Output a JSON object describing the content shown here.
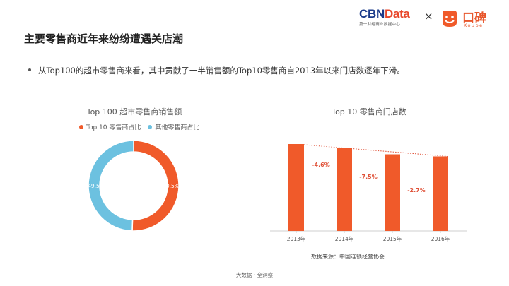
{
  "header": {
    "title": "主要零售商近年来纷纷遭遇关店潮",
    "cbn_logo": {
      "part1": "CBN",
      "part2": "Data",
      "tagline": "第一财经商业数据中心"
    },
    "times_symbol": "×",
    "koubei_logo": {
      "text": "口碑",
      "sub": "Koubei"
    }
  },
  "bullet": "从Top100的超市零售商来看，其中贡献了一半销售额的Top10零售商自2013年以来门店数逐年下滑。",
  "colors": {
    "orange": "#f05a2a",
    "blue": "#6cc1e0",
    "trend_line": "#e0533a"
  },
  "chart_data": [
    {
      "type": "pie",
      "title": "Top 100 超市零售商销售额",
      "legend": [
        "Top 10 零售商占比",
        "其他零售商占比"
      ],
      "labels": [
        "Top 10 零售商占比",
        "其他零售商占比"
      ],
      "values": [
        50.5,
        49.5
      ],
      "value_labels": [
        "50.5%",
        "49.5%"
      ],
      "style": "donut"
    },
    {
      "type": "bar",
      "title": "Top 10 零售商门店数",
      "categories": [
        "2013年",
        "2014年",
        "2015年",
        "2016年"
      ],
      "values": [
        100,
        95.4,
        88.2,
        85.8
      ],
      "yaxis_shown": false,
      "annotations": [
        "-4.6%",
        "-7.5%",
        "-2.7%"
      ]
    }
  ],
  "source": "数据来源：中国连锁经营协会",
  "footer": "大数据 · 全洞察"
}
